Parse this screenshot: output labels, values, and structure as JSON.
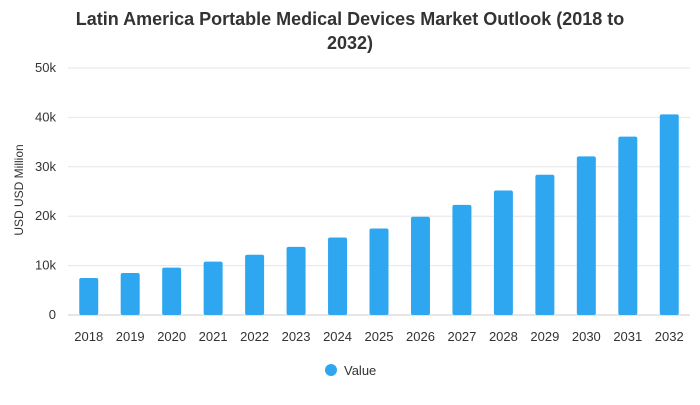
{
  "chart_data": {
    "type": "bar",
    "title_lines": [
      "Latin America Portable Medical Devices Market Outlook (2018 to",
      "2032)"
    ],
    "xlabel": "",
    "ylabel": "USD USD Million",
    "categories": [
      "2018",
      "2019",
      "2020",
      "2021",
      "2022",
      "2023",
      "2024",
      "2025",
      "2026",
      "2027",
      "2028",
      "2029",
      "2030",
      "2031",
      "2032"
    ],
    "series": [
      {
        "name": "Value",
        "values": [
          7500,
          8500,
          9600,
          10800,
          12200,
          13800,
          15700,
          17500,
          19900,
          22300,
          25200,
          28400,
          32100,
          36100,
          40600
        ]
      }
    ],
    "ylim": [
      0,
      50000
    ],
    "yticks": [
      0,
      10000,
      20000,
      30000,
      40000,
      50000
    ],
    "ytick_labels": [
      "0",
      "10k",
      "20k",
      "30k",
      "40k",
      "50k"
    ],
    "grid": true,
    "legend_position": "bottom-center",
    "colors": {
      "bar": "#2fa7f0"
    }
  }
}
